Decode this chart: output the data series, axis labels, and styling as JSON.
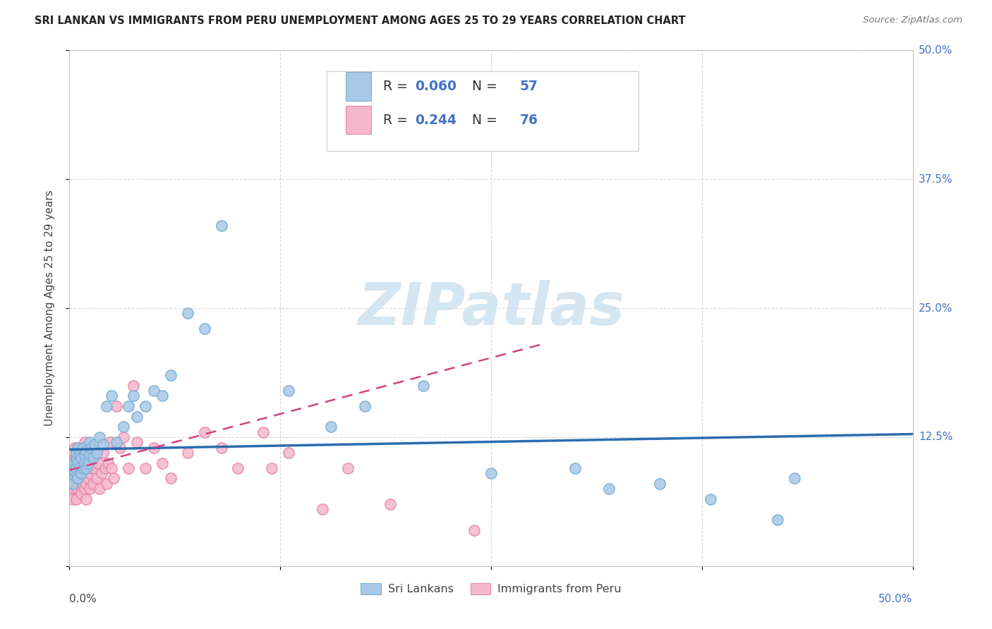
{
  "title": "SRI LANKAN VS IMMIGRANTS FROM PERU UNEMPLOYMENT AMONG AGES 25 TO 29 YEARS CORRELATION CHART",
  "source": "Source: ZipAtlas.com",
  "ylabel": "Unemployment Among Ages 25 to 29 years",
  "legend_label1": "Sri Lankans",
  "legend_label2": "Immigrants from Peru",
  "R1": "0.060",
  "N1": "57",
  "R2": "0.244",
  "N2": "76",
  "color_blue": "#a8c8e8",
  "color_blue_edge": "#7aaed0",
  "color_pink": "#f4b8cc",
  "color_pink_edge": "#e888aa",
  "color_blue_line": "#2b6cb0",
  "color_pink_line": "#d44080",
  "color_blue_text": "#4472c4",
  "watermark_color": "#d0e4f0",
  "xlim": [
    0.0,
    0.5
  ],
  "ylim": [
    0.0,
    0.5
  ],
  "grid_color": "#cccccc",
  "right_ytick_labels": [
    "50.0%",
    "37.5%",
    "25.0%",
    "12.5%"
  ],
  "right_ytick_vals": [
    0.5,
    0.375,
    0.25,
    0.125
  ],
  "blue_line_y0": 0.113,
  "blue_line_y1": 0.128,
  "pink_line_x0": 0.0,
  "pink_line_x1": 0.28,
  "pink_line_y0": 0.093,
  "pink_line_y1": 0.215,
  "sri_x": [
    0.001,
    0.001,
    0.002,
    0.002,
    0.003,
    0.003,
    0.003,
    0.004,
    0.004,
    0.004,
    0.005,
    0.005,
    0.005,
    0.006,
    0.006,
    0.007,
    0.007,
    0.008,
    0.008,
    0.009,
    0.009,
    0.01,
    0.01,
    0.011,
    0.012,
    0.012,
    0.013,
    0.014,
    0.015,
    0.016,
    0.018,
    0.02,
    0.022,
    0.025,
    0.028,
    0.032,
    0.035,
    0.038,
    0.04,
    0.045,
    0.05,
    0.055,
    0.06,
    0.07,
    0.08,
    0.09,
    0.13,
    0.155,
    0.175,
    0.21,
    0.25,
    0.3,
    0.32,
    0.35,
    0.38,
    0.42,
    0.43
  ],
  "sri_y": [
    0.09,
    0.085,
    0.095,
    0.08,
    0.1,
    0.088,
    0.092,
    0.105,
    0.095,
    0.11,
    0.085,
    0.1,
    0.115,
    0.095,
    0.108,
    0.09,
    0.105,
    0.115,
    0.095,
    0.108,
    0.1,
    0.112,
    0.095,
    0.1,
    0.12,
    0.108,
    0.115,
    0.105,
    0.118,
    0.11,
    0.125,
    0.118,
    0.155,
    0.165,
    0.12,
    0.135,
    0.155,
    0.165,
    0.145,
    0.155,
    0.17,
    0.165,
    0.185,
    0.245,
    0.23,
    0.33,
    0.17,
    0.135,
    0.155,
    0.175,
    0.09,
    0.095,
    0.075,
    0.08,
    0.065,
    0.045,
    0.085
  ],
  "peru_x": [
    0.001,
    0.001,
    0.001,
    0.002,
    0.002,
    0.002,
    0.002,
    0.003,
    0.003,
    0.003,
    0.003,
    0.003,
    0.004,
    0.004,
    0.004,
    0.004,
    0.005,
    0.005,
    0.005,
    0.005,
    0.006,
    0.006,
    0.006,
    0.007,
    0.007,
    0.007,
    0.008,
    0.008,
    0.008,
    0.009,
    0.009,
    0.009,
    0.01,
    0.01,
    0.01,
    0.011,
    0.011,
    0.012,
    0.012,
    0.013,
    0.013,
    0.014,
    0.014,
    0.015,
    0.016,
    0.017,
    0.018,
    0.019,
    0.02,
    0.021,
    0.022,
    0.023,
    0.024,
    0.025,
    0.026,
    0.028,
    0.03,
    0.032,
    0.035,
    0.038,
    0.04,
    0.045,
    0.05,
    0.055,
    0.06,
    0.07,
    0.08,
    0.09,
    0.1,
    0.115,
    0.12,
    0.13,
    0.15,
    0.165,
    0.19,
    0.24
  ],
  "peru_y": [
    0.085,
    0.075,
    0.095,
    0.08,
    0.1,
    0.065,
    0.11,
    0.085,
    0.095,
    0.075,
    0.105,
    0.115,
    0.08,
    0.095,
    0.065,
    0.11,
    0.085,
    0.075,
    0.1,
    0.115,
    0.08,
    0.095,
    0.115,
    0.085,
    0.07,
    0.105,
    0.08,
    0.095,
    0.11,
    0.075,
    0.09,
    0.12,
    0.08,
    0.095,
    0.065,
    0.085,
    0.1,
    0.09,
    0.075,
    0.095,
    0.115,
    0.08,
    0.105,
    0.095,
    0.085,
    0.1,
    0.075,
    0.09,
    0.11,
    0.095,
    0.08,
    0.1,
    0.12,
    0.095,
    0.085,
    0.155,
    0.115,
    0.125,
    0.095,
    0.175,
    0.12,
    0.095,
    0.115,
    0.1,
    0.085,
    0.11,
    0.13,
    0.115,
    0.095,
    0.13,
    0.095,
    0.11,
    0.055,
    0.095,
    0.06,
    0.035
  ]
}
